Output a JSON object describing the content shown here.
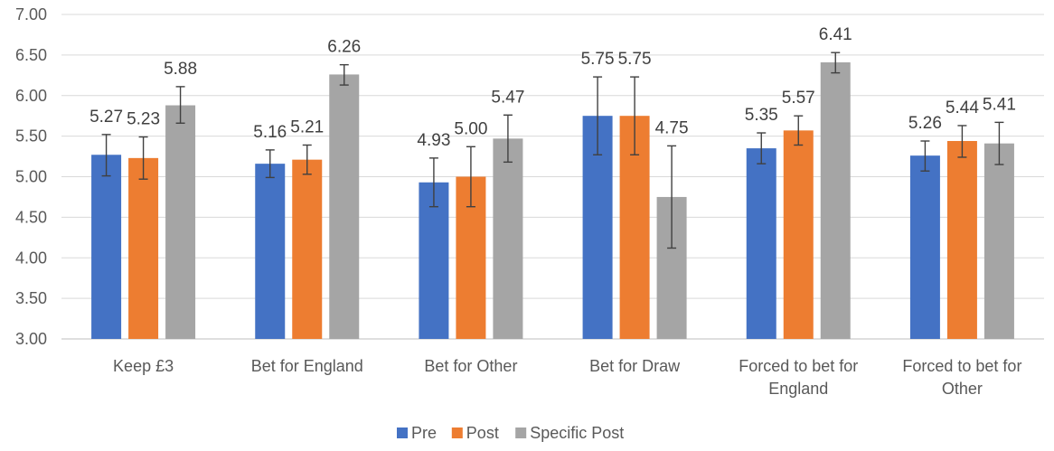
{
  "chart_data": {
    "type": "bar",
    "title": "",
    "xlabel": "",
    "ylabel": "",
    "ylim": [
      3.0,
      7.0
    ],
    "yticks": [
      "3.00",
      "3.50",
      "4.00",
      "4.50",
      "5.00",
      "5.50",
      "6.00",
      "6.50",
      "7.00"
    ],
    "ytick_values": [
      3.0,
      3.5,
      4.0,
      4.5,
      5.0,
      5.5,
      6.0,
      6.5,
      7.0
    ],
    "grid": "horizontal",
    "legend_position": "bottom",
    "categories": [
      [
        "Keep £3"
      ],
      [
        "Bet for England"
      ],
      [
        "Bet for Other"
      ],
      [
        "Bet for Draw"
      ],
      [
        "Forced to bet for",
        "England"
      ],
      [
        "Forced to bet for",
        "Other"
      ]
    ],
    "series": [
      {
        "name": "Pre",
        "color": "#4472C4",
        "values": [
          5.27,
          5.16,
          4.93,
          5.75,
          5.35,
          5.26
        ],
        "labels": [
          "5.27",
          "5.16",
          "4.93",
          "5.75",
          "5.35",
          "5.26"
        ],
        "error_low": [
          5.01,
          4.99,
          4.63,
          5.27,
          5.16,
          5.07
        ],
        "error_high": [
          5.52,
          5.33,
          5.23,
          6.23,
          5.54,
          5.44
        ]
      },
      {
        "name": "Post",
        "color": "#ED7D31",
        "values": [
          5.23,
          5.21,
          5.0,
          5.75,
          5.57,
          5.44
        ],
        "labels": [
          "5.23",
          "5.21",
          "5.00",
          "5.75",
          "5.57",
          "5.44"
        ],
        "error_low": [
          4.97,
          5.03,
          4.63,
          5.27,
          5.39,
          5.24
        ],
        "error_high": [
          5.49,
          5.39,
          5.37,
          6.23,
          5.75,
          5.63
        ]
      },
      {
        "name": "Specific Post",
        "color": "#A5A5A5",
        "values": [
          5.88,
          6.26,
          5.47,
          4.75,
          6.41,
          5.41
        ],
        "labels": [
          "5.88",
          "6.26",
          "5.47",
          "4.75",
          "6.41",
          "5.41"
        ],
        "error_low": [
          5.66,
          6.13,
          5.18,
          4.12,
          6.28,
          5.15
        ],
        "error_high": [
          6.11,
          6.38,
          5.76,
          5.38,
          6.53,
          5.67
        ]
      }
    ]
  }
}
